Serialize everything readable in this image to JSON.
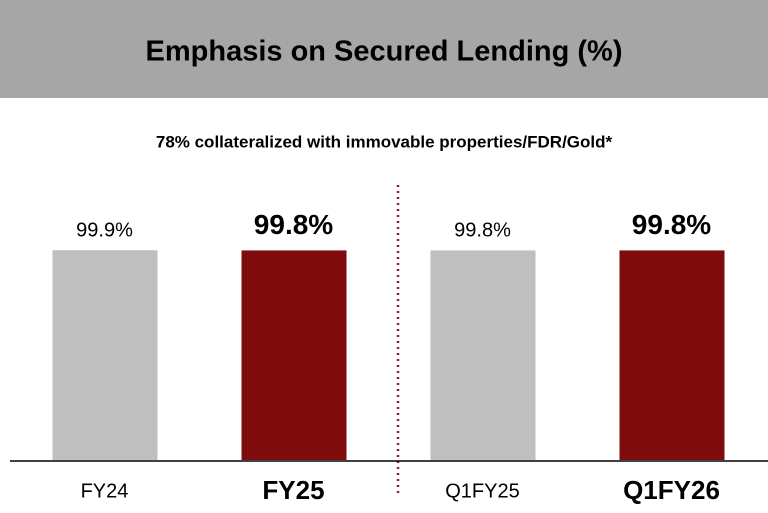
{
  "chart_data": {
    "type": "bar",
    "title": "Emphasis on Secured Lending (%)",
    "subtitle": "78% collateralized with immovable properties/FDR/Gold*",
    "categories": [
      "FY24",
      "FY25",
      "Q1FY25",
      "Q1FY26"
    ],
    "values": [
      99.9,
      99.8,
      99.8,
      99.8
    ],
    "value_labels": [
      "99.9%",
      "99.8%",
      "99.8%",
      "99.8%"
    ],
    "colors": [
      "#bfbfbf",
      "#7f0c0c",
      "#bfbfbf",
      "#7f0c0c"
    ],
    "bold": [
      false,
      true,
      false,
      true
    ],
    "ylim": [
      0,
      100
    ]
  }
}
